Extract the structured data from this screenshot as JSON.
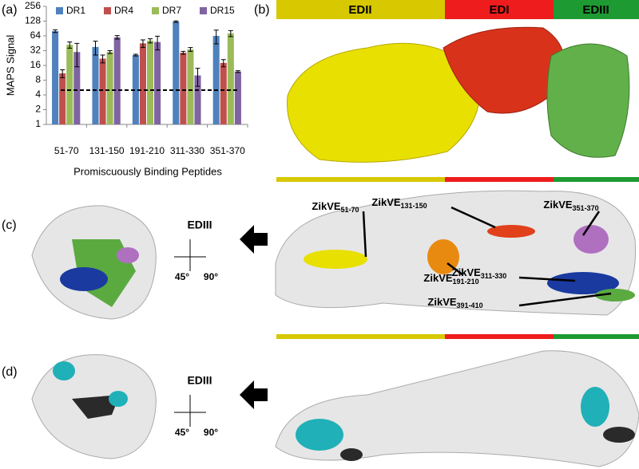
{
  "chart_data": {
    "type": "bar",
    "panel": "(a)",
    "y_label": "MAPS Signal",
    "x_label": "Promiscuously Binding Peptides",
    "categories": [
      "51-70",
      "131-150",
      "191-210",
      "311-330",
      "351-370"
    ],
    "series": [
      {
        "name": "DR1",
        "color": "#4f81bd",
        "values": [
          80,
          38,
          26,
          125,
          64
        ],
        "errors": [
          5,
          12,
          1,
          4,
          20
        ]
      },
      {
        "name": "DR4",
        "color": "#c0504d",
        "values": [
          11,
          22,
          45,
          29,
          18
        ],
        "errors": [
          2,
          4,
          8,
          2,
          3
        ]
      },
      {
        "name": "DR7",
        "color": "#9bbb59",
        "values": [
          42,
          30,
          51,
          34,
          72
        ],
        "errors": [
          6,
          2,
          5,
          3,
          10
        ]
      },
      {
        "name": "DR15",
        "color": "#8064a2",
        "values": [
          30,
          60,
          48,
          10,
          12
        ],
        "errors": [
          15,
          5,
          15,
          4,
          0.5
        ]
      }
    ],
    "reference_line": 5,
    "log_scale": true,
    "ylim": [
      1,
      256
    ],
    "yticks": [
      1,
      2,
      4,
      8,
      16,
      32,
      64,
      128,
      256
    ],
    "legend": "top"
  },
  "panels": {
    "b": "(b)",
    "c": "(c)",
    "d": "(d)"
  },
  "domains": [
    "EDII",
    "EDI",
    "EDIII"
  ],
  "edIII_c": {
    "label": "EDIII",
    "rot1": "45°",
    "rot2": "90°"
  },
  "edIII_d": {
    "label": "EDIII",
    "rot1": "45°",
    "rot2": "90°"
  },
  "epitopes": [
    {
      "text": "ZikVE",
      "sub": "51-70"
    },
    {
      "text": "ZikVE",
      "sub": "131-150"
    },
    {
      "text": "ZikVE",
      "sub": "351-370"
    },
    {
      "text": "ZikVE",
      "sub": "191-210"
    },
    {
      "text": "ZikVE",
      "sub": "311-330"
    },
    {
      "text": "ZikVE",
      "sub": "391-410"
    }
  ]
}
